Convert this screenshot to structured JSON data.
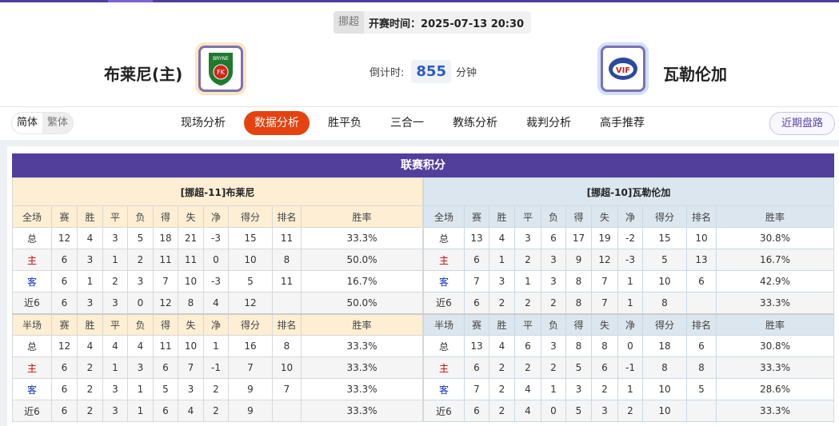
{
  "match": {
    "league": "挪超",
    "kickoff_label": "开赛时间：",
    "kickoff": "2025-07-13 20:30",
    "home": "布莱尼(主)",
    "away": "瓦勒伦加",
    "countdown_label": "倒计时:",
    "countdown": "855",
    "countdown_unit": "分钟",
    "home_logo": "BRYNE FK",
    "away_logo": "VIF"
  },
  "lang": {
    "simplified": "简体",
    "traditional": "繁体"
  },
  "tabs": [
    {
      "label": "现场分析"
    },
    {
      "label": "数据分析",
      "active": true
    },
    {
      "label": "胜平负"
    },
    {
      "label": "三合一"
    },
    {
      "label": "教练分析"
    },
    {
      "label": "裁判分析"
    },
    {
      "label": "高手推荐"
    }
  ],
  "recent_button": "近期盘路",
  "colors": {
    "accent": "#523f9c",
    "active_tab": "#e5420f",
    "home_row": "#d00000",
    "away_row": "#1030c0"
  },
  "standings": {
    "title": "联赛积分",
    "headers": [
      "赛",
      "胜",
      "平",
      "负",
      "得",
      "失",
      "净",
      "得分",
      "排名",
      "胜率"
    ],
    "teams": [
      {
        "name": "[挪超-11]布莱尼",
        "full_label": "全场",
        "half_label": "半场",
        "full": [
          [
            "总",
            "12",
            "4",
            "3",
            "5",
            "18",
            "21",
            "-3",
            "15",
            "11",
            "33.3%"
          ],
          [
            "主",
            "6",
            "3",
            "1",
            "2",
            "11",
            "11",
            "0",
            "10",
            "8",
            "50.0%"
          ],
          [
            "客",
            "6",
            "1",
            "2",
            "3",
            "7",
            "10",
            "-3",
            "5",
            "11",
            "16.7%"
          ],
          [
            "近6",
            "6",
            "3",
            "3",
            "0",
            "12",
            "8",
            "4",
            "12",
            "",
            "50.0%"
          ]
        ],
        "half": [
          [
            "总",
            "12",
            "4",
            "4",
            "4",
            "11",
            "10",
            "1",
            "16",
            "8",
            "33.3%"
          ],
          [
            "主",
            "6",
            "2",
            "1",
            "3",
            "6",
            "7",
            "-1",
            "7",
            "10",
            "33.3%"
          ],
          [
            "客",
            "6",
            "2",
            "3",
            "1",
            "5",
            "3",
            "2",
            "9",
            "7",
            "33.3%"
          ],
          [
            "近6",
            "6",
            "2",
            "3",
            "1",
            "6",
            "4",
            "2",
            "9",
            "",
            "33.3%"
          ]
        ]
      },
      {
        "name": "[挪超-10]瓦勒伦加",
        "full_label": "全场",
        "half_label": "半场",
        "full": [
          [
            "总",
            "13",
            "4",
            "3",
            "6",
            "17",
            "19",
            "-2",
            "15",
            "10",
            "30.8%"
          ],
          [
            "主",
            "6",
            "1",
            "2",
            "3",
            "9",
            "12",
            "-3",
            "5",
            "13",
            "16.7%"
          ],
          [
            "客",
            "7",
            "3",
            "1",
            "3",
            "8",
            "7",
            "1",
            "10",
            "6",
            "42.9%"
          ],
          [
            "近6",
            "6",
            "2",
            "2",
            "2",
            "8",
            "7",
            "1",
            "8",
            "",
            "33.3%"
          ]
        ],
        "half": [
          [
            "总",
            "13",
            "4",
            "6",
            "3",
            "8",
            "8",
            "0",
            "18",
            "6",
            "30.8%"
          ],
          [
            "主",
            "6",
            "2",
            "2",
            "2",
            "5",
            "6",
            "-1",
            "8",
            "8",
            "33.3%"
          ],
          [
            "客",
            "7",
            "2",
            "4",
            "1",
            "3",
            "2",
            "1",
            "10",
            "5",
            "28.6%"
          ],
          [
            "近6",
            "6",
            "2",
            "4",
            "0",
            "5",
            "3",
            "2",
            "10",
            "",
            "33.3%"
          ]
        ]
      }
    ]
  }
}
